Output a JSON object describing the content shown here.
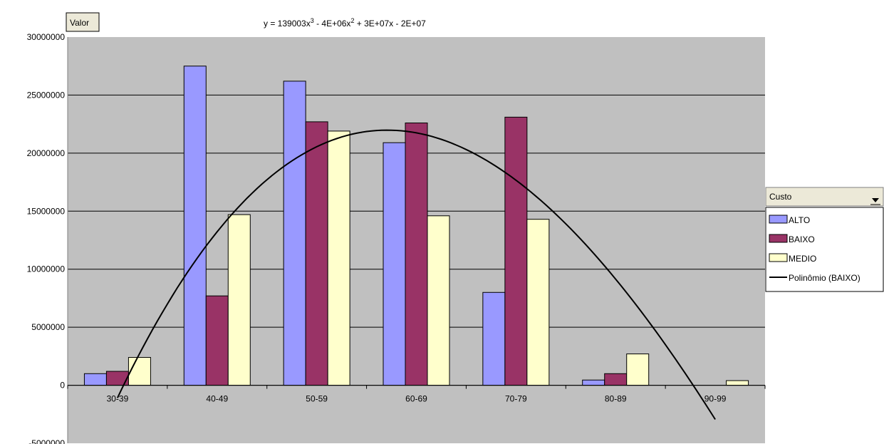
{
  "field_button": {
    "label": "Valor"
  },
  "equation": {
    "prefix": "y = 139003x",
    "t1": " - 4E+06x",
    "t2": " + 3E+07x - 2E+07",
    "exp": "3",
    "exp2": "2"
  },
  "legend": {
    "title": "Custo",
    "items": [
      {
        "label": "ALTO",
        "color": "#9999ff",
        "kind": "box"
      },
      {
        "label": "BAIXO",
        "color": "#993366",
        "kind": "box"
      },
      {
        "label": "MEDIO",
        "color": "#ffffcc",
        "kind": "box"
      },
      {
        "label": "Polinômio (BAIXO)",
        "color": "#000000",
        "kind": "line"
      }
    ]
  },
  "colors": {
    "plot_bg": "#c0c0c0",
    "grid": "#000000",
    "button_bg": "#ece9d8"
  },
  "chart_data": {
    "type": "bar",
    "categories": [
      "30-39",
      "40-49",
      "50-59",
      "60-69",
      "70-79",
      "80-89",
      "90-99"
    ],
    "series": [
      {
        "name": "ALTO",
        "color": "#9999ff",
        "values": [
          1000000,
          27500000,
          26200000,
          20900000,
          8000000,
          450000,
          0
        ]
      },
      {
        "name": "BAIXO",
        "color": "#993366",
        "values": [
          1200000,
          7700000,
          22700000,
          22600000,
          23100000,
          1000000,
          0
        ]
      },
      {
        "name": "MEDIO",
        "color": "#ffffcc",
        "values": [
          2400000,
          14700000,
          21900000,
          14600000,
          14300000,
          2700000,
          400000
        ]
      }
    ],
    "trendline": {
      "name": "Polinômio (BAIXO)",
      "type": "polynomial",
      "order": 3,
      "of_series": "BAIXO"
    },
    "ylim": [
      -5000000,
      30000000
    ],
    "yticks": [
      "-5000000",
      "0",
      "5000000",
      "10000000",
      "15000000",
      "20000000",
      "25000000",
      "30000000"
    ],
    "grid": true,
    "legend_position": "right"
  }
}
